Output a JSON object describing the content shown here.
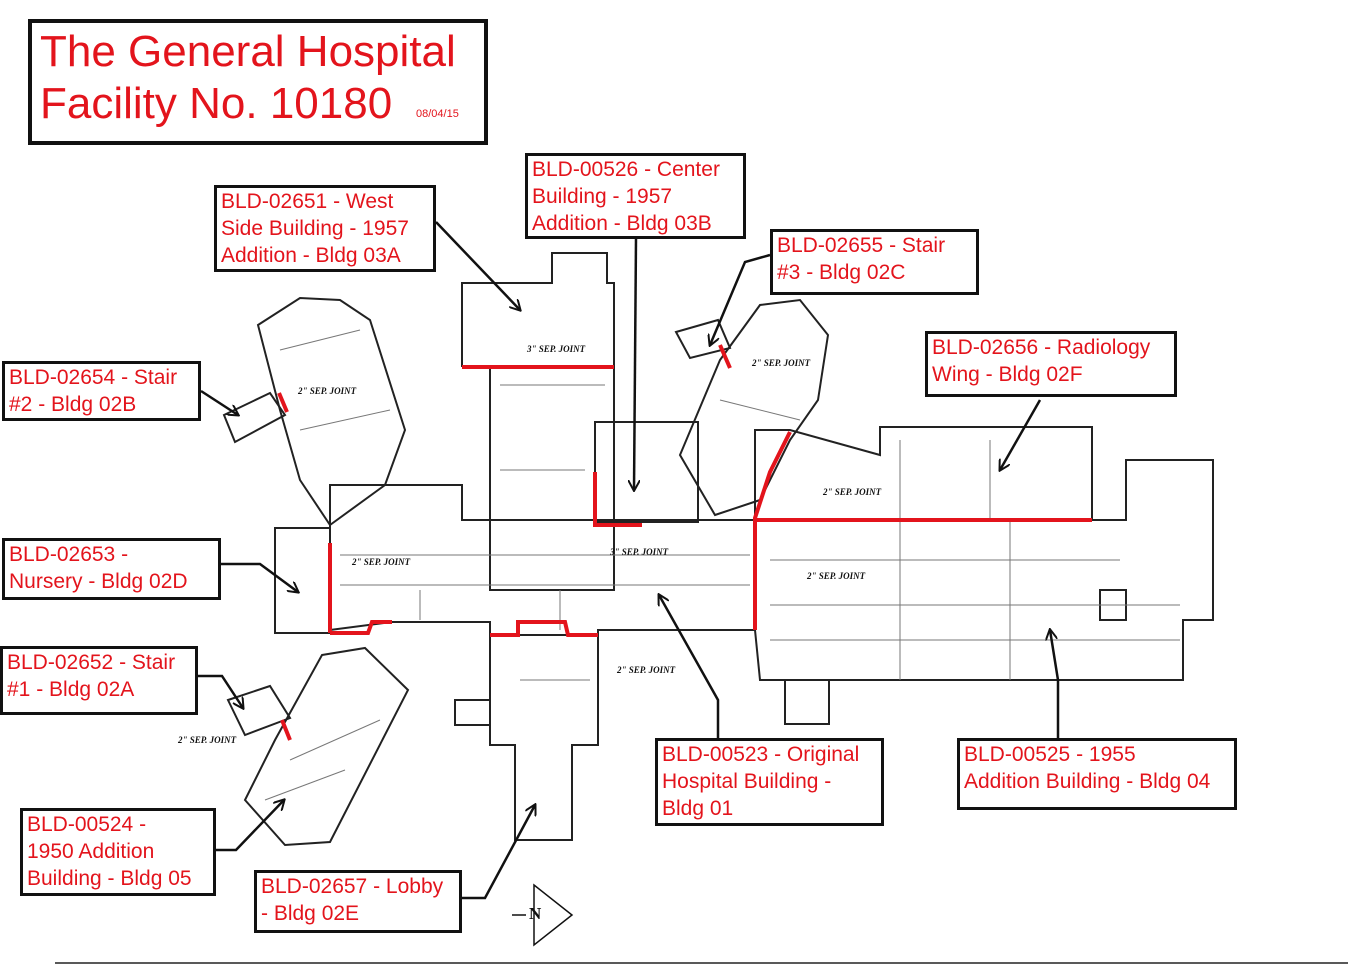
{
  "title": {
    "line1": "The General Hospital",
    "line2": "Facility No. 10180",
    "date": "08/04/15"
  },
  "labels": [
    {
      "id": "bld-00526",
      "lines": [
        "BLD-00526 - Center",
        "Building - 1957",
        "Addition - Bldg 03B"
      ]
    },
    {
      "id": "bld-02651",
      "lines": [
        "BLD-02651 - West",
        "Side Building - 1957",
        "Addition - Bldg 03A"
      ]
    },
    {
      "id": "bld-02655",
      "lines": [
        "BLD-02655 - Stair",
        "#3 - Bldg 02C"
      ]
    },
    {
      "id": "bld-02656",
      "lines": [
        "BLD-02656 - Radiology",
        "Wing - Bldg 02F"
      ]
    },
    {
      "id": "bld-02654",
      "lines": [
        "BLD-02654 - Stair",
        "#2 - Bldg 02B"
      ]
    },
    {
      "id": "bld-02653",
      "lines": [
        "BLD-02653 -",
        "Nursery - Bldg 02D"
      ]
    },
    {
      "id": "bld-02652",
      "lines": [
        "BLD-02652 - Stair",
        "#1 - Bldg 02A"
      ]
    },
    {
      "id": "bld-00523",
      "lines": [
        "BLD-00523 - Original",
        "Hospital Building -",
        "Bldg 01"
      ]
    },
    {
      "id": "bld-00525",
      "lines": [
        "BLD-00525 - 1955",
        "Addition Building - Bldg 04"
      ]
    },
    {
      "id": "bld-00524",
      "lines": [
        "BLD-00524 -",
        "1950 Addition",
        "Building - Bldg 05"
      ]
    },
    {
      "id": "bld-02657",
      "lines": [
        "BLD-02657 - Lobby",
        "- Bldg 02E"
      ]
    }
  ],
  "joints": {
    "three_inch": "3\" SEP. JOINT",
    "two_inch": "2\" SEP. JOINT"
  },
  "compass": {
    "letter": "N"
  },
  "colors": {
    "accent": "#e3141c",
    "line": "#111111",
    "background": "#ffffff"
  }
}
